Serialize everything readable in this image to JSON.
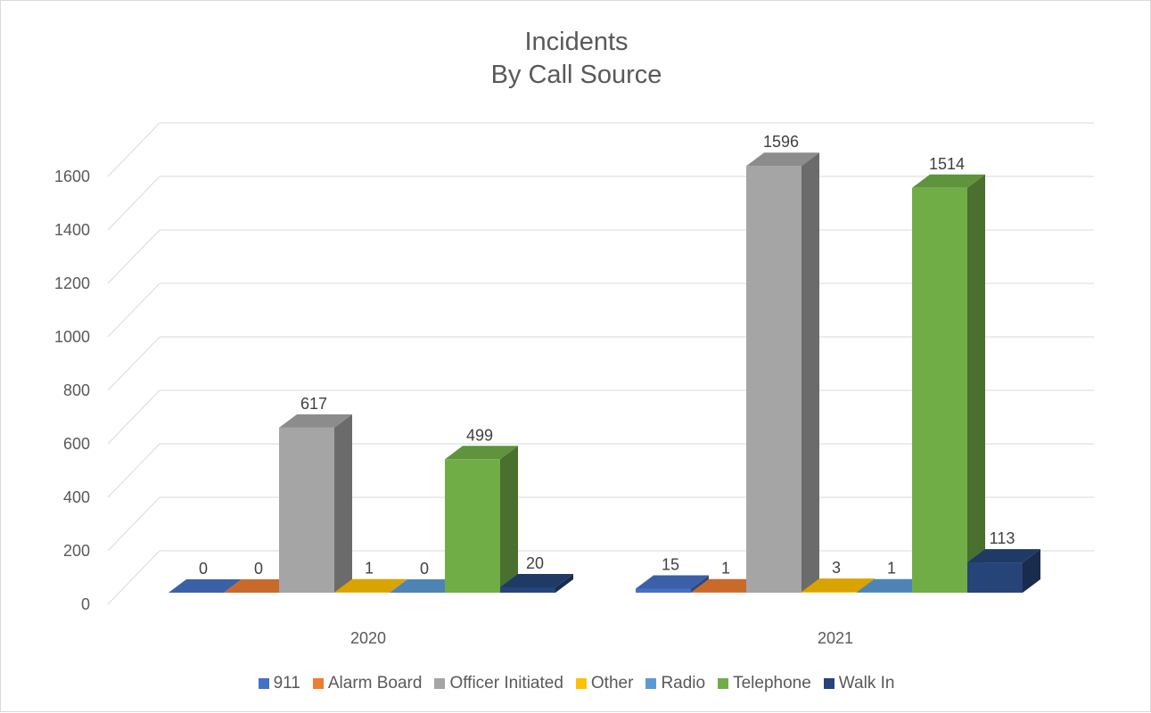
{
  "chart_data": {
    "type": "bar",
    "title_line1": "Incidents",
    "title_line2": "By Call Source",
    "categories": [
      "2020",
      "2021"
    ],
    "series": [
      {
        "name": "911",
        "values": [
          0,
          15
        ],
        "labels": [
          "0",
          "15"
        ],
        "color": "#4472C4"
      },
      {
        "name": "Alarm Board",
        "values": [
          0,
          1
        ],
        "labels": [
          "0",
          "1"
        ],
        "color": "#ED7D31"
      },
      {
        "name": "Officer Initiated",
        "values": [
          617,
          1596
        ],
        "labels": [
          "617",
          "1596"
        ],
        "color": "#A5A5A5"
      },
      {
        "name": "Other",
        "values": [
          1,
          3
        ],
        "labels": [
          "1",
          "3"
        ],
        "color": "#FFC000"
      },
      {
        "name": "Radio",
        "values": [
          0,
          1
        ],
        "labels": [
          "0",
          "1"
        ],
        "color": "#5B9BD5"
      },
      {
        "name": "Telephone",
        "values": [
          499,
          1514
        ],
        "labels": [
          "499",
          "1514"
        ],
        "color": "#70AD47"
      },
      {
        "name": "Walk In",
        "values": [
          20,
          113
        ],
        "labels": [
          "20",
          "113"
        ],
        "color": "#264478"
      }
    ],
    "yticks": [
      "0",
      "200",
      "400",
      "600",
      "800",
      "1000",
      "1200",
      "1400",
      "1600"
    ],
    "ylim": [
      0,
      1600
    ],
    "grid": true,
    "legend_position": "bottom",
    "style": "3d-column"
  }
}
